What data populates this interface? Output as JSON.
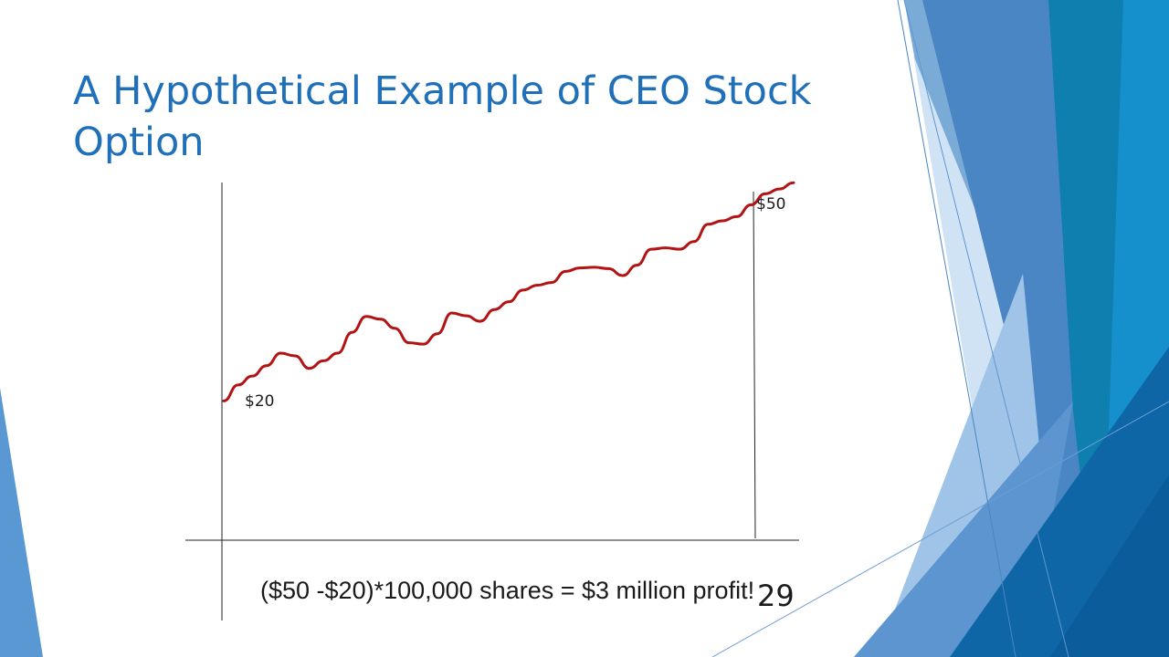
{
  "slide": {
    "title": "A Hypothetical Example of CEO Stock Option",
    "caption": "($50 -$20)*100,000 shares = $3 million profit!",
    "slide_number": "29",
    "colors": {
      "title": "#1f6fb9",
      "price_line": "#b31313",
      "axis": "#222222",
      "accent_blue": "#1a7fc1"
    }
  },
  "chart_data": {
    "type": "line",
    "title": "",
    "xlabel": "",
    "ylabel": "",
    "annotations": [
      {
        "text": "$20",
        "value": 20,
        "position": "start"
      },
      {
        "text": "$50",
        "value": 50,
        "position": "end"
      }
    ],
    "ylim": [
      0,
      54
    ],
    "series": [
      {
        "values": [
          20.1,
          22.4,
          23.7,
          25.2,
          27.0,
          26.6,
          24.8,
          25.9,
          27.0,
          30.0,
          32.3,
          31.9,
          30.6,
          28.5,
          28.3,
          29.8,
          32.8,
          32.4,
          31.6,
          33.3,
          34.4,
          36.1,
          36.8,
          37.2,
          38.8,
          39.3,
          39.4,
          39.2,
          38.2,
          39.7,
          42.0,
          42.2,
          42.0,
          43.1,
          45.6,
          46.1,
          46.7,
          48.4,
          50.0,
          50.7,
          51.6
        ]
      }
    ]
  }
}
